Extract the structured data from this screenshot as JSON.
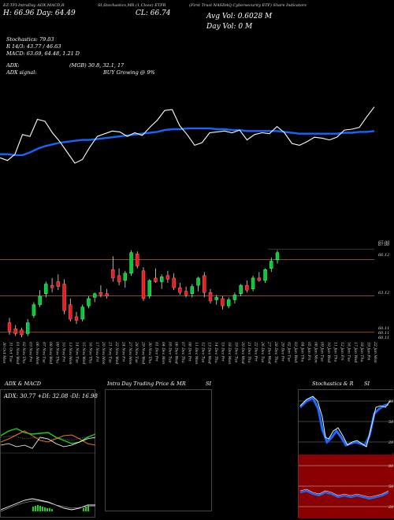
{
  "header": {
    "top_left": "EZ-TFI-IntraDay ADX,MACD,R",
    "top_sub": "SI,Stochastics,MR",
    "top_mid": "(1,Close) ETFR",
    "top_right": "(First Trust NASDAQ Cybersecurity ETF) Share Indicators",
    "day_label": "CL: 66.74",
    "hl_label": "H: 66.96  Day: 64.49",
    "vol_label": "Avg Vol: 0.6028  M",
    "day_vol": "Day Vol: 0  M"
  },
  "indicators": {
    "stochastics": "Stochastics: 79.03",
    "rsi": "R  14/3: 43.77 / 46.63",
    "macd": "MACD: 63.69, 64.48, 1.21  D",
    "adx": "ADX:",
    "adx_val": "(MGB) 30.8,  32.1,  17",
    "adx_signal": "ADX  signal:",
    "adx_signal_val": "BUY Growing @ 9%"
  },
  "price_axis": [
    "67.00",
    "66.12",
    "63.12",
    "60.11",
    "60.11",
    "60.11"
  ],
  "date_labels": [
    "30 Oct Mon",
    "31 Oct Tue",
    "01 Nov Wed",
    "02 Nov Thu",
    "03 Nov Fri",
    "06 Nov Mon",
    "07 Nov Tue",
    "08 Nov Wed",
    "09 Nov Thu",
    "10 Nov Fri",
    "13 Nov Mon",
    "14 Nov Tue",
    "15 Nov Wed",
    "16 Nov Thu",
    "17 Nov Fri",
    "20 Nov Mon",
    "21 Nov Tue",
    "22 Nov Wed",
    "24 Nov Fri",
    "27 Nov Mon",
    "28 Nov Tue",
    "29 Nov Wed",
    "30 Nov Thu",
    "01 Dec Fri",
    "04 Dec Mon",
    "05 Dec Tue",
    "06 Dec Wed",
    "07 Dec Thu",
    "08 Dec Fri",
    "11 Dec Mon",
    "12 Dec Tue",
    "13 Dec Wed",
    "14 Dec Thu",
    "15 Dec Fri",
    "18 Dec Mon",
    "19 Dec Tue",
    "20 Dec Wed",
    "21 Dec Thu",
    "22 Dec Fri",
    "26 Dec Tue",
    "27 Dec Wed",
    "28 Dec Thu",
    "29 Dec Fri",
    "02 Jan Tue",
    "03 Jan Wed",
    "04 Jan Thu",
    "05 Jan Fri",
    "08 Jan Mon",
    "09 Jan Tue",
    "10 Jan Wed",
    "11 Jan Thu",
    "12 Jan Fri",
    "16 Jan Tue",
    "17 Jan Wed",
    "18 Jan Thu",
    "19 Jan Fri",
    "22 Jan Mon"
  ],
  "panels": {
    "adx_title": "ADX  & MACD",
    "adx_values": "ADX: 30.77  +DI: 32.08  -DI: 16.98",
    "intraday_title": "Intra  Day Trading Price  & MR",
    "intraday_si": "SI",
    "stoch_title": "Stochastics & R",
    "stoch_si": "SI",
    "stoch_levels": [
      "80",
      "50",
      "20"
    ],
    "rsi_levels": [
      "80",
      "50",
      "20"
    ]
  },
  "colors": {
    "up": "#00cc33",
    "down": "#ee1c1c",
    "ma": "#1565ff",
    "price_line": "#ffffff",
    "level_line": "#b5651d",
    "red_panel": "#8b0000",
    "stoch_blue": "#1a6bff"
  },
  "chart_data": {
    "type": "candlestick",
    "title": "(First Trust NASDAQ Cybersecurity ETF) Share Indicators",
    "ylim": [
      59.7,
      67.4
    ],
    "levels": [
      66.12,
      63.12,
      60.11
    ],
    "candles": [
      {
        "o": 60.9,
        "h": 61.3,
        "l": 59.9,
        "c": 60.2
      },
      {
        "o": 60.4,
        "h": 60.7,
        "l": 59.8,
        "c": 60.0
      },
      {
        "o": 60.3,
        "h": 60.5,
        "l": 59.7,
        "c": 59.9
      },
      {
        "o": 60.0,
        "h": 61.2,
        "l": 59.8,
        "c": 60.9
      },
      {
        "o": 61.5,
        "h": 62.6,
        "l": 61.3,
        "c": 62.4
      },
      {
        "o": 62.4,
        "h": 63.6,
        "l": 62.2,
        "c": 63.1
      },
      {
        "o": 63.3,
        "h": 64.3,
        "l": 63.0,
        "c": 64.1
      },
      {
        "o": 64.0,
        "h": 64.6,
        "l": 63.4,
        "c": 63.8
      },
      {
        "o": 64.3,
        "h": 64.9,
        "l": 63.6,
        "c": 63.9
      },
      {
        "o": 64.1,
        "h": 64.5,
        "l": 61.6,
        "c": 61.9
      },
      {
        "o": 62.4,
        "h": 62.9,
        "l": 61.0,
        "c": 61.2
      },
      {
        "o": 61.4,
        "h": 61.8,
        "l": 60.8,
        "c": 61.1
      },
      {
        "o": 61.2,
        "h": 62.4,
        "l": 61.0,
        "c": 62.2
      },
      {
        "o": 62.3,
        "h": 63.1,
        "l": 62.1,
        "c": 62.9
      },
      {
        "o": 63.0,
        "h": 63.4,
        "l": 62.6,
        "c": 63.3
      },
      {
        "o": 63.4,
        "h": 64.0,
        "l": 63.0,
        "c": 63.2
      },
      {
        "o": 63.3,
        "h": 63.7,
        "l": 62.9,
        "c": 63.1
      },
      {
        "o": 65.3,
        "h": 66.4,
        "l": 64.3,
        "c": 64.6
      },
      {
        "o": 64.8,
        "h": 65.4,
        "l": 64.0,
        "c": 64.3
      },
      {
        "o": 64.4,
        "h": 65.2,
        "l": 63.8,
        "c": 65.0
      },
      {
        "o": 65.0,
        "h": 66.9,
        "l": 64.8,
        "c": 66.7
      },
      {
        "o": 66.6,
        "h": 66.8,
        "l": 65.4,
        "c": 65.6
      },
      {
        "o": 65.2,
        "h": 65.5,
        "l": 62.7,
        "c": 62.9
      },
      {
        "o": 63.1,
        "h": 64.5,
        "l": 62.9,
        "c": 64.4
      },
      {
        "o": 64.6,
        "h": 65.4,
        "l": 64.2,
        "c": 64.3
      },
      {
        "o": 64.3,
        "h": 64.9,
        "l": 63.7,
        "c": 64.7
      },
      {
        "o": 64.8,
        "h": 65.2,
        "l": 64.2,
        "c": 64.5
      },
      {
        "o": 64.6,
        "h": 65.0,
        "l": 63.6,
        "c": 63.8
      },
      {
        "o": 63.8,
        "h": 64.2,
        "l": 63.2,
        "c": 63.4
      },
      {
        "o": 63.5,
        "h": 63.9,
        "l": 63.0,
        "c": 63.2
      },
      {
        "o": 63.3,
        "h": 64.1,
        "l": 63.0,
        "c": 63.9
      },
      {
        "o": 64.0,
        "h": 64.7,
        "l": 63.5,
        "c": 64.6
      },
      {
        "o": 64.8,
        "h": 65.1,
        "l": 63.0,
        "c": 63.4
      },
      {
        "o": 63.4,
        "h": 63.7,
        "l": 62.5,
        "c": 62.7
      },
      {
        "o": 62.8,
        "h": 63.2,
        "l": 62.4,
        "c": 63.0
      },
      {
        "o": 62.9,
        "h": 63.1,
        "l": 62.0,
        "c": 62.3
      },
      {
        "o": 62.3,
        "h": 63.0,
        "l": 62.1,
        "c": 62.8
      },
      {
        "o": 62.8,
        "h": 63.4,
        "l": 62.5,
        "c": 63.2
      },
      {
        "o": 63.3,
        "h": 64.1,
        "l": 63.1,
        "c": 64.0
      },
      {
        "o": 64.0,
        "h": 64.4,
        "l": 63.4,
        "c": 63.6
      },
      {
        "o": 63.7,
        "h": 64.8,
        "l": 63.5,
        "c": 64.6
      },
      {
        "o": 64.6,
        "h": 65.1,
        "l": 64.3,
        "c": 64.4
      },
      {
        "o": 64.4,
        "h": 65.4,
        "l": 64.2,
        "c": 65.3
      },
      {
        "o": 65.4,
        "h": 66.3,
        "l": 65.1,
        "c": 66.0
      },
      {
        "o": 66.1,
        "h": 66.9,
        "l": 65.8,
        "c": 66.7
      }
    ],
    "close_line": [
      61.8,
      61.5,
      62.2,
      64.4,
      64.2,
      66.1,
      65.9,
      64.6,
      63.6,
      62.4,
      61.2,
      61.6,
      63.0,
      64.2,
      64.5,
      64.8,
      64.7,
      64.2,
      64.6,
      64.3,
      65.2,
      66.0,
      67.1,
      67.2,
      65.4,
      64.4,
      63.2,
      63.5,
      64.6,
      64.7,
      64.8,
      64.6,
      64.9,
      63.8,
      64.4,
      64.6,
      64.5,
      65.3,
      64.6,
      63.4,
      63.2,
      63.6,
      64.1,
      64.0,
      63.8,
      64.1,
      64.9,
      65.0,
      65.2,
      66.4,
      67.5
    ],
    "ma_line": [
      62.2,
      62.2,
      62.1,
      62.1,
      62.4,
      62.8,
      63.1,
      63.3,
      63.5,
      63.6,
      63.7,
      63.8,
      63.8,
      63.9,
      64.0,
      64.1,
      64.2,
      64.3,
      64.4,
      64.5,
      64.6,
      64.7,
      64.9,
      65.0,
      65.0,
      65.1,
      65.1,
      65.1,
      65.1,
      65.0,
      65.0,
      64.9,
      64.9,
      64.8,
      64.8,
      64.8,
      64.8,
      64.8,
      64.7,
      64.6,
      64.5,
      64.5,
      64.5,
      64.5,
      64.5,
      64.5,
      64.6,
      64.6,
      64.7,
      64.7,
      64.8
    ]
  }
}
